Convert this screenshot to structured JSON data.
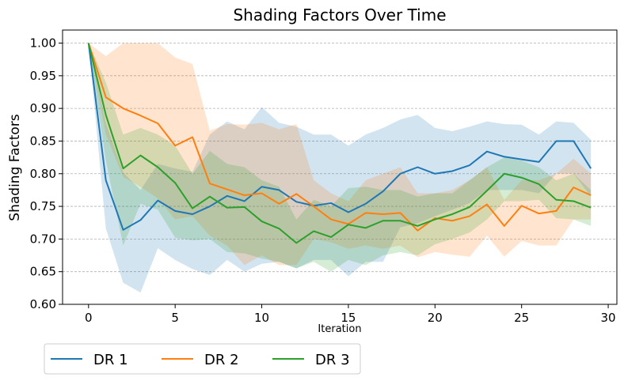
{
  "chart_data": {
    "type": "line",
    "title": "Shading Factors Over Time",
    "xlabel": "Iteration",
    "ylabel": "Shading Factors",
    "xlim": [
      -1.5,
      30.5
    ],
    "ylim": [
      0.6,
      1.02
    ],
    "xticks": [
      0,
      5,
      10,
      15,
      20,
      25,
      30
    ],
    "yticks": [
      "0.60",
      "0.65",
      "0.70",
      "0.75",
      "0.80",
      "0.85",
      "0.90",
      "0.95",
      "1.00"
    ],
    "grid": "horizontal dashed",
    "legend_position": "below-left",
    "x": [
      0,
      1,
      2,
      3,
      4,
      5,
      6,
      7,
      8,
      9,
      10,
      11,
      12,
      13,
      14,
      15,
      16,
      17,
      18,
      19,
      20,
      21,
      22,
      23,
      24,
      25,
      26,
      27,
      28,
      29
    ],
    "series": [
      {
        "name": "DR 1",
        "color": "#1f77b4",
        "values": [
          1.0,
          0.79,
          0.714,
          0.729,
          0.759,
          0.743,
          0.738,
          0.75,
          0.766,
          0.758,
          0.78,
          0.775,
          0.757,
          0.751,
          0.755,
          0.741,
          0.754,
          0.773,
          0.8,
          0.81,
          0.8,
          0.804,
          0.813,
          0.834,
          0.826,
          0.822,
          0.818,
          0.85,
          0.85,
          0.808
        ],
        "upper": [
          1.0,
          0.878,
          0.802,
          0.775,
          0.815,
          0.808,
          0.803,
          0.86,
          0.88,
          0.868,
          0.902,
          0.878,
          0.872,
          0.86,
          0.86,
          0.843,
          0.86,
          0.87,
          0.883,
          0.89,
          0.87,
          0.865,
          0.872,
          0.88,
          0.876,
          0.875,
          0.86,
          0.88,
          0.878,
          0.852
        ],
        "lower": [
          1.0,
          0.716,
          0.633,
          0.618,
          0.686,
          0.668,
          0.654,
          0.645,
          0.668,
          0.65,
          0.662,
          0.665,
          0.655,
          0.668,
          0.668,
          0.643,
          0.665,
          0.665,
          0.718,
          0.724,
          0.735,
          0.745,
          0.755,
          0.775,
          0.775,
          0.775,
          0.77,
          0.8,
          0.8,
          0.765
        ]
      },
      {
        "name": "DR 2",
        "color": "#ff7f0e",
        "values": [
          1.0,
          0.917,
          0.9,
          0.889,
          0.877,
          0.843,
          0.856,
          0.785,
          0.776,
          0.767,
          0.77,
          0.754,
          0.769,
          0.75,
          0.73,
          0.723,
          0.74,
          0.738,
          0.74,
          0.713,
          0.732,
          0.728,
          0.735,
          0.753,
          0.72,
          0.751,
          0.739,
          0.743,
          0.779,
          0.767
        ],
        "upper": [
          1.0,
          0.98,
          1.0,
          1.0,
          1.0,
          0.978,
          0.968,
          0.866,
          0.876,
          0.875,
          0.878,
          0.868,
          0.876,
          0.79,
          0.77,
          0.758,
          0.79,
          0.8,
          0.81,
          0.77,
          0.77,
          0.775,
          0.79,
          0.81,
          0.76,
          0.79,
          0.79,
          0.8,
          0.823,
          0.8
        ],
        "lower": [
          1.0,
          0.86,
          0.795,
          0.78,
          0.762,
          0.73,
          0.735,
          0.705,
          0.69,
          0.66,
          0.675,
          0.66,
          0.66,
          0.7,
          0.695,
          0.685,
          0.69,
          0.685,
          0.69,
          0.672,
          0.68,
          0.676,
          0.673,
          0.705,
          0.673,
          0.697,
          0.69,
          0.69,
          0.73,
          0.73
        ]
      },
      {
        "name": "DR 3",
        "color": "#2ca02c",
        "values": [
          1.0,
          0.89,
          0.808,
          0.828,
          0.81,
          0.786,
          0.747,
          0.765,
          0.748,
          0.749,
          0.727,
          0.716,
          0.694,
          0.712,
          0.703,
          0.722,
          0.717,
          0.728,
          0.728,
          0.72,
          0.73,
          0.738,
          0.749,
          0.774,
          0.8,
          0.794,
          0.784,
          0.76,
          0.758,
          0.748
        ],
        "upper": [
          1.0,
          0.94,
          0.86,
          0.87,
          0.86,
          0.843,
          0.8,
          0.835,
          0.815,
          0.81,
          0.79,
          0.78,
          0.73,
          0.76,
          0.75,
          0.778,
          0.78,
          0.775,
          0.775,
          0.765,
          0.77,
          0.77,
          0.79,
          0.81,
          0.825,
          0.82,
          0.81,
          0.79,
          0.8,
          0.775
        ],
        "lower": [
          1.0,
          0.82,
          0.69,
          0.754,
          0.745,
          0.702,
          0.698,
          0.7,
          0.68,
          0.678,
          0.67,
          0.665,
          0.655,
          0.665,
          0.65,
          0.668,
          0.66,
          0.675,
          0.68,
          0.675,
          0.692,
          0.7,
          0.71,
          0.73,
          0.758,
          0.758,
          0.76,
          0.732,
          0.73,
          0.72
        ]
      }
    ]
  }
}
